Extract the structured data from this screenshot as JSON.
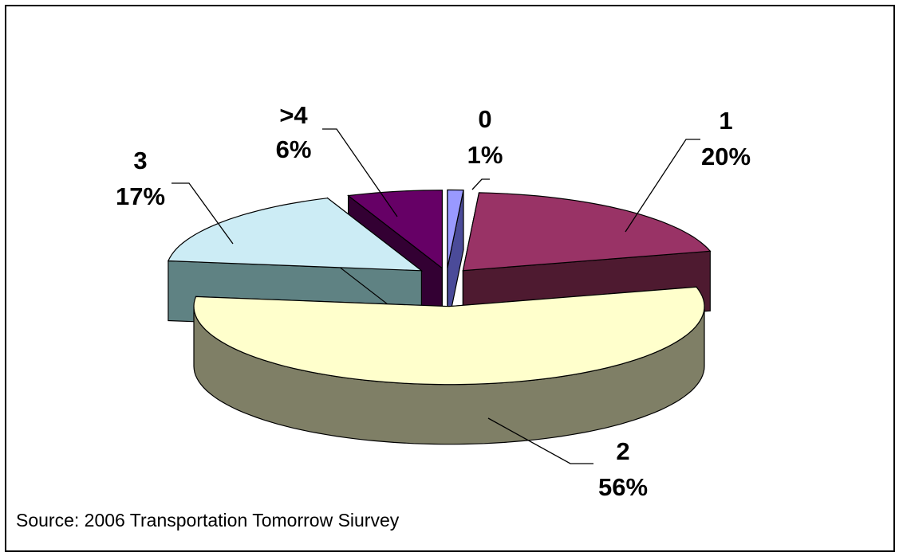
{
  "chart_data": {
    "type": "pie",
    "style": "3d-exploded",
    "categories": [
      "0",
      "1",
      "2",
      "3",
      ">4"
    ],
    "values": [
      1,
      20,
      56,
      17,
      6
    ],
    "percent_labels": [
      "1%",
      "20%",
      "56%",
      "17%",
      "6%"
    ],
    "colors": {
      "0": "#9999ff",
      "1": "#993366",
      "2": "#ffffcc",
      "3": "#ccecf5",
      ">4": "#660066"
    },
    "side_colors": {
      "0": "#4b4b99",
      "1": "#4e1a30",
      "2": "#7f7f66",
      "3": "#5f8283",
      ">4": "#330033"
    },
    "legend": "none",
    "grid": false
  },
  "source_text": "Source: 2006 Transportation Tomorrow Siurvey"
}
